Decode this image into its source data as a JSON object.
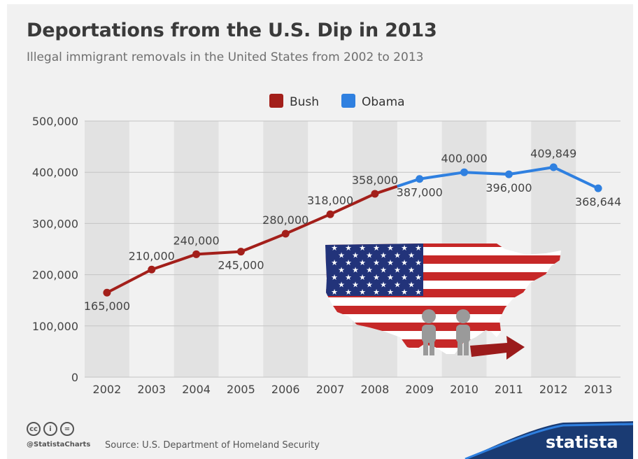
{
  "title": "Deportations from the U.S. Dip in 2013",
  "subtitle": "Illegal immigrant removals in the United States from 2002 to 2013",
  "footer": {
    "icons": [
      "cc-icon",
      "attribution-icon",
      "no-derivatives-icon"
    ],
    "handle": "@StatistaCharts",
    "source": "Source: U.S. Department of Homeland Security",
    "brand": "statista"
  },
  "chart_data": {
    "type": "line",
    "title": "Deportations from the U.S. Dip in 2013",
    "subtitle": "Illegal immigrant removals in the United States from 2002 to 2013",
    "x": [
      "2002",
      "2003",
      "2004",
      "2005",
      "2006",
      "2007",
      "2008",
      "2009",
      "2010",
      "2011",
      "2012",
      "2013"
    ],
    "yticks": [
      "0",
      "100,000",
      "200,000",
      "300,000",
      "400,000",
      "500,000"
    ],
    "ylim": [
      0,
      500000
    ],
    "grid": "horizontal lines, alternating vertical bands",
    "legend": {
      "position": "top-center"
    },
    "series": [
      {
        "name": "Bush",
        "color": "#a31f1a",
        "x": [
          "2002",
          "2003",
          "2004",
          "2005",
          "2006",
          "2007",
          "2008"
        ],
        "values": [
          165000,
          210000,
          240000,
          245000,
          280000,
          318000,
          358000
        ]
      },
      {
        "name": "Obama",
        "color": "#2f80e0",
        "x": [
          "2009",
          "2010",
          "2011",
          "2012",
          "2013"
        ],
        "values": [
          387000,
          400000,
          396000,
          409849,
          368644
        ]
      }
    ],
    "data_labels": [
      "165,000",
      "210,000",
      "240,000",
      "245,000",
      "280,000",
      "318,000",
      "358,000",
      "387,000",
      "400,000",
      "396,000",
      "409,849",
      "368,644"
    ]
  }
}
